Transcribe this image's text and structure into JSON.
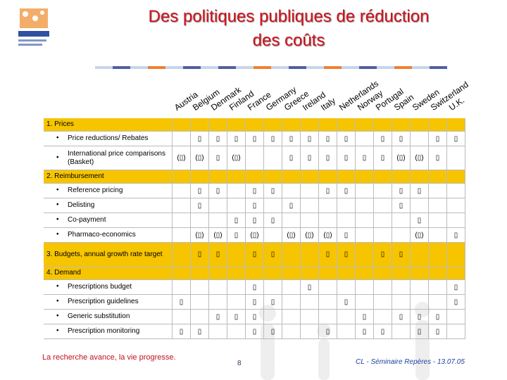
{
  "header": {
    "title_lines": [
      "Des politiques publiques de réduction",
      "des coûts"
    ]
  },
  "table": {
    "countries": [
      "Austria",
      "Belgium",
      "Denmark",
      "Finland",
      "France",
      "Germany",
      "Greece",
      "Ireland",
      "Italy",
      "Netherlands",
      "Norway",
      "Portugal",
      "Spain",
      "Sweden",
      "Switzerland",
      "U.K."
    ],
    "sections": [
      {
        "title": "1. Prices",
        "items": [
          {
            "label": "Price reductions/ Rebates",
            "cells": [
              null,
              "▯",
              "▯",
              "▯",
              "▯",
              "▯",
              "▯",
              "▯",
              "▯",
              "▯",
              null,
              "▯",
              "▯",
              null,
              "▯",
              "▯"
            ]
          },
          {
            "label": "International price comparisons (Basket)",
            "cells": [
              "(▯)",
              "(▯)",
              "▯",
              "(▯)",
              null,
              null,
              "▯",
              "▯",
              "▯",
              "▯",
              "▯",
              "▯",
              "(▯)",
              "(▯)",
              "▯",
              null
            ]
          }
        ]
      },
      {
        "title": "2. Reimbursement",
        "items": [
          {
            "label": "Reference pricing",
            "cells": [
              null,
              "▯",
              "▯",
              null,
              "▯",
              "▯",
              null,
              null,
              "▯",
              "▯",
              null,
              null,
              "▯",
              "▯",
              null,
              null
            ]
          },
          {
            "label": "Delisting",
            "cells": [
              null,
              "▯",
              null,
              null,
              "▯",
              null,
              "▯",
              null,
              null,
              null,
              null,
              null,
              "▯",
              null,
              null,
              null
            ]
          },
          {
            "label": "Co-payment",
            "cells": [
              null,
              null,
              null,
              "▯",
              "▯",
              "▯",
              null,
              null,
              null,
              null,
              null,
              null,
              null,
              "▯",
              null,
              null
            ]
          },
          {
            "label": "Pharmaco-economics",
            "cells": [
              null,
              "(▯)",
              "(▯)",
              "▯",
              "(▯)",
              null,
              "(▯)",
              "(▯)",
              "(▯)",
              "▯",
              null,
              null,
              null,
              "(▯)",
              null,
              "▯"
            ]
          }
        ]
      },
      {
        "title": "3. Budgets, annual growth rate target",
        "cells": [
          null,
          "▯",
          "▯",
          null,
          "▯",
          "▯",
          null,
          null,
          "▯",
          "▯",
          null,
          "▯",
          "▯",
          null,
          null,
          null
        ],
        "items": []
      },
      {
        "title": "4. Demand",
        "items": [
          {
            "label": "Prescriptions budget",
            "cells": [
              null,
              null,
              null,
              null,
              "▯",
              null,
              null,
              "▯",
              null,
              null,
              null,
              null,
              null,
              null,
              null,
              "▯"
            ]
          },
          {
            "label": "Prescription guidelines",
            "cells": [
              "▯",
              null,
              null,
              null,
              "▯",
              "▯",
              null,
              null,
              null,
              "▯",
              null,
              null,
              null,
              null,
              null,
              "▯"
            ]
          },
          {
            "label": "Generic substitution",
            "cells": [
              null,
              null,
              "▯",
              "▯",
              "▯",
              null,
              null,
              null,
              null,
              null,
              "▯",
              null,
              "▯",
              "▯",
              "▯",
              null
            ]
          },
          {
            "label": "Prescription monitoring",
            "cells": [
              "▯",
              "▯",
              null,
              null,
              "▯",
              "▯",
              null,
              null,
              "▯",
              null,
              "▯",
              "▯",
              null,
              "▯",
              "▯",
              null
            ]
          }
        ]
      }
    ]
  },
  "footer": {
    "slogan": "La recherche avance, la vie progresse.",
    "page": "8",
    "credit": "CL - Séminaire Repères - 13.07.05"
  }
}
